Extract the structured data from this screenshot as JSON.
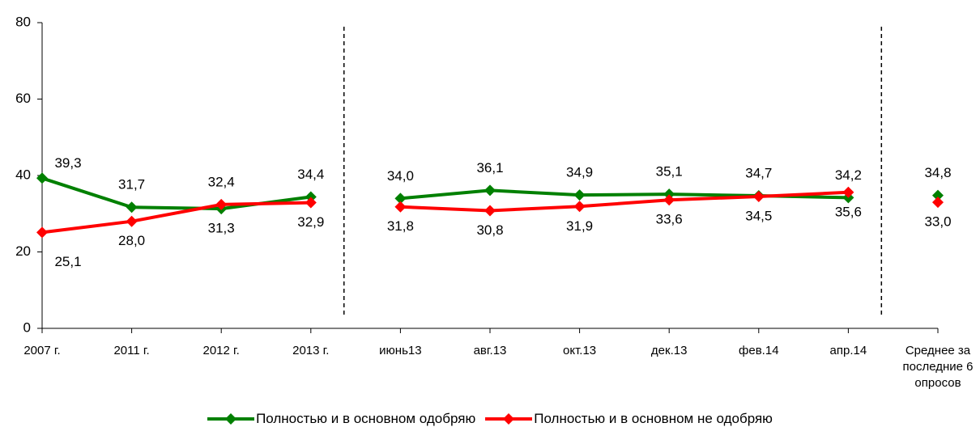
{
  "chart_data": {
    "type": "line",
    "categories": [
      "2007 г.",
      "2011 г.",
      "2012 г.",
      "2013 г.",
      "июнь13",
      "авг.13",
      "окт.13",
      "дек.13",
      "фев.14",
      "апр.14",
      "Среднее за последние 6 опросов"
    ],
    "series": [
      {
        "name": "Полностью и в основном одобряю",
        "color": "#008000",
        "values": [
          39.3,
          31.7,
          31.3,
          34.4,
          34.0,
          36.1,
          34.9,
          35.1,
          34.7,
          34.2,
          34.8
        ],
        "value_labels": [
          "39,3",
          "31,7",
          "31,3",
          "34,4",
          "34,0",
          "36,1",
          "34,9",
          "35,1",
          "34,7",
          "34,2",
          "34,8"
        ]
      },
      {
        "name": "Полностью и в основном не одобряю",
        "color": "#ff0000",
        "values": [
          25.1,
          28.0,
          32.4,
          32.9,
          31.8,
          30.8,
          31.9,
          33.6,
          34.5,
          35.6,
          33.0
        ],
        "value_labels": [
          "25,1",
          "28,0",
          "32,4",
          "32,9",
          "31,8",
          "30,8",
          "31,9",
          "33,6",
          "34,5",
          "35,6",
          "33,0"
        ]
      }
    ],
    "ylim": [
      0,
      80
    ],
    "yticks": [
      0,
      20,
      40,
      60,
      80
    ],
    "separators_after": [
      3,
      9
    ],
    "legend": "bottom"
  }
}
